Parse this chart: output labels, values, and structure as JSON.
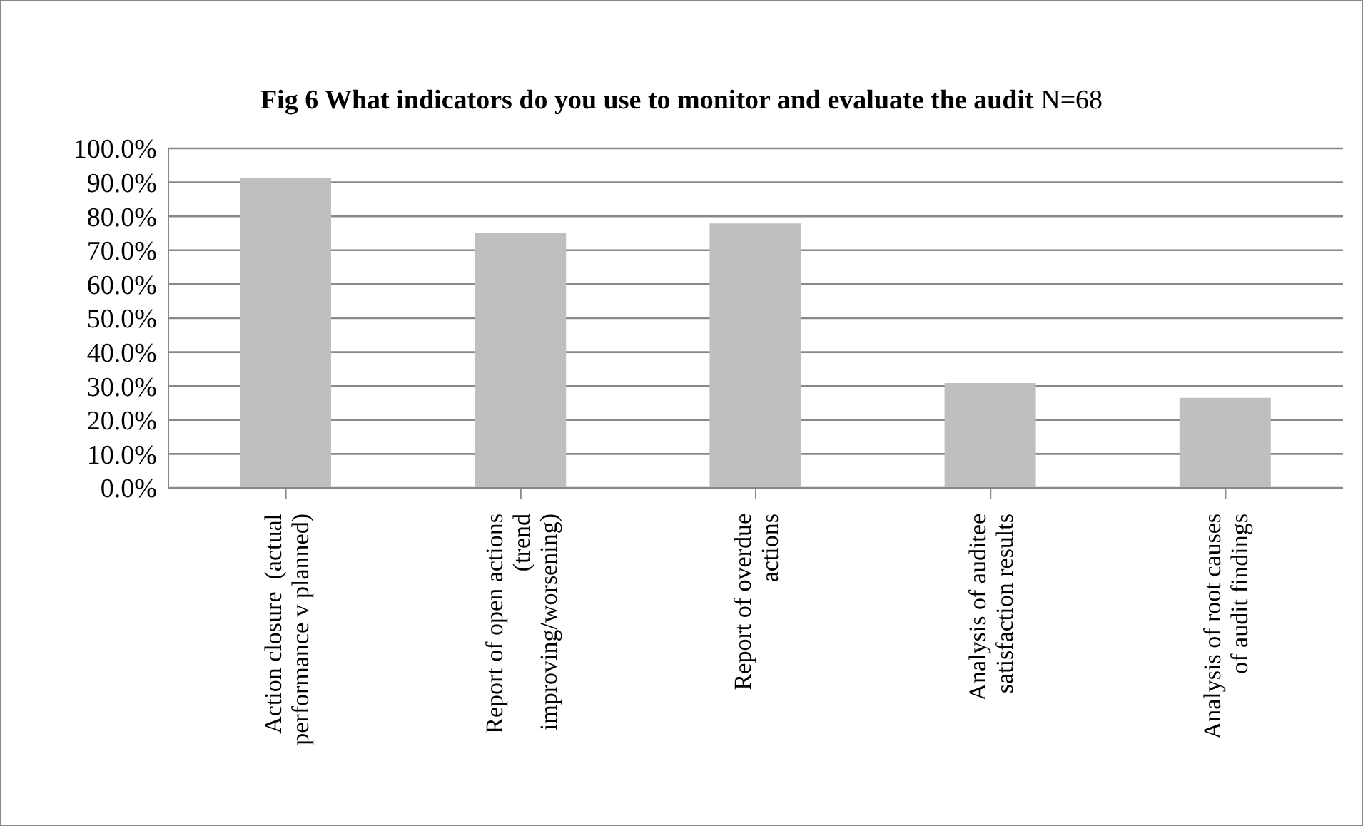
{
  "chart_data": {
    "type": "bar",
    "title": "Fig 6 What indicators do you use to monitor and evaluate the audit N=68",
    "categories": [
      "Action closure  (actual\nperformance v planned)",
      "Report of open actions\n(trend\nimproving/worsening)",
      "Report of overdue\nactions",
      "Analysis of auditee\nsatisfaction results",
      "Analysis of root causes\nof audit findings"
    ],
    "values": [
      91.2,
      75.0,
      77.9,
      30.9,
      26.5
    ],
    "color": "#bfbfbf",
    "ylim": [
      0,
      100
    ],
    "yticks": [
      {
        "value": 0,
        "label": "0.0%"
      },
      {
        "value": 10,
        "label": "10.0%"
      },
      {
        "value": 20,
        "label": "20.0%"
      },
      {
        "value": 30,
        "label": "30.0%"
      },
      {
        "value": 40,
        "label": "40.0%"
      },
      {
        "value": 50,
        "label": "50.0%"
      },
      {
        "value": 60,
        "label": "60.0%"
      },
      {
        "value": 70,
        "label": "70.0%"
      },
      {
        "value": 80,
        "label": "80.0%"
      },
      {
        "value": 90,
        "label": "90.0%"
      },
      {
        "value": 100,
        "label": "100.0%"
      }
    ],
    "grid": "y",
    "legend": false
  }
}
